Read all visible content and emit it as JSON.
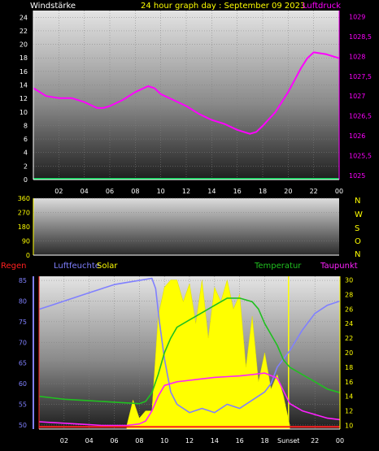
{
  "header": {
    "title": "24 hour graph day : September 09 2023",
    "left_label": "Windstärke",
    "right_label": "Luftdruck"
  },
  "compass": [
    "N",
    "W",
    "S",
    "O",
    "N"
  ],
  "bottom_labels": {
    "regen": "Regen",
    "luftfeuchte": "Luftfeuchte",
    "solar": "Solar",
    "temperatur": "Temperatur",
    "taupunkt": "Taupunkt",
    "sunset": "Sunset"
  },
  "colors": {
    "title": "#ffff00",
    "wind": "#ffffff",
    "pressure": "#ff00ff",
    "rain": "#ff2020",
    "humidity": "#8080ff",
    "solar": "#ffff00",
    "temperature": "#20c020",
    "dewpoint": "#ff20ff",
    "grid": "#808080"
  },
  "chart_data": [
    {
      "type": "line",
      "name": "wind-pressure",
      "x_ticks": [
        "02",
        "04",
        "06",
        "08",
        "10",
        "12",
        "14",
        "16",
        "18",
        "20",
        "22",
        "00"
      ],
      "ylabel": "Windstärke",
      "y2label": "Luftdruck",
      "ylim": [
        0,
        25
      ],
      "y_ticks": [
        0,
        2,
        4,
        6,
        8,
        10,
        12,
        14,
        16,
        18,
        20,
        22,
        24
      ],
      "y2lim": [
        1024.9,
        1029.15
      ],
      "y2_ticks": [
        "1025",
        "1025,5",
        "1026",
        "1026,5",
        "1027",
        "1027,5",
        "1028",
        "1028,5",
        "1029"
      ],
      "series": [
        {
          "name": "Luftdruck",
          "axis": "right",
          "x": [
            0,
            1,
            2,
            3,
            4,
            5,
            5.5,
            6,
            7,
            8,
            9,
            9.5,
            10,
            11,
            12,
            13,
            14,
            15,
            16,
            17,
            17.5,
            18,
            19,
            20,
            21,
            21.5,
            22,
            23,
            24
          ],
          "values": [
            1027.2,
            1027.0,
            1026.95,
            1026.95,
            1026.85,
            1026.7,
            1026.7,
            1026.75,
            1026.9,
            1027.1,
            1027.25,
            1027.2,
            1027.05,
            1026.9,
            1026.75,
            1026.55,
            1026.4,
            1026.3,
            1026.15,
            1026.05,
            1026.1,
            1026.25,
            1026.6,
            1027.1,
            1027.7,
            1027.95,
            1028.1,
            1028.05,
            1027.95
          ]
        },
        {
          "name": "Windstärke",
          "axis": "left",
          "x": [
            0,
            24
          ],
          "values": [
            0,
            0
          ]
        }
      ]
    },
    {
      "type": "line",
      "name": "wind-direction",
      "x_ticks": [
        "02",
        "04",
        "06",
        "08",
        "10",
        "12",
        "14",
        "16",
        "18",
        "20",
        "22",
        "00"
      ],
      "ylim": [
        0,
        360
      ],
      "y_ticks": [
        0,
        90,
        180,
        270,
        360
      ],
      "series": []
    },
    {
      "type": "area",
      "name": "climate",
      "x_ticks": [
        "02",
        "04",
        "06",
        "08",
        "10",
        "12",
        "14",
        "16",
        "18",
        "22",
        "00"
      ],
      "x_tick_hours": [
        2,
        4,
        6,
        8,
        10,
        12,
        14,
        16,
        18,
        22,
        24
      ],
      "ylim": [
        49,
        86
      ],
      "y_ticks": [
        50,
        55,
        60,
        65,
        70,
        75,
        80,
        85
      ],
      "y2lim": [
        9.5,
        30.5
      ],
      "y2_ticks": [
        10,
        12,
        14,
        16,
        18,
        20,
        22,
        24,
        26,
        28,
        30
      ],
      "sunset_hour": 19.9,
      "series": [
        {
          "name": "Luftfeuchte",
          "axis": "left",
          "x": [
            0,
            1,
            2,
            3,
            4,
            5,
            6,
            7,
            8,
            9,
            9.3,
            9.6,
            10,
            10.5,
            11,
            12,
            13,
            14,
            15,
            16,
            17,
            18,
            18.5,
            19,
            20,
            21,
            22,
            23,
            24
          ],
          "values": [
            78,
            79,
            80,
            81,
            82,
            83,
            84,
            84.5,
            85,
            85.5,
            83,
            75,
            66,
            58,
            55,
            53,
            54,
            53,
            55,
            54,
            56,
            58,
            60,
            64,
            68,
            73,
            77,
            79,
            80
          ]
        },
        {
          "name": "Temperatur",
          "axis": "right",
          "x": [
            0,
            1,
            2,
            3,
            4,
            5,
            6,
            7,
            8,
            8.5,
            9,
            9.5,
            10,
            10.5,
            11,
            12,
            13,
            14,
            15,
            16,
            17,
            17.5,
            18,
            19,
            19.5,
            20,
            21,
            22,
            23,
            24
          ],
          "values": [
            14,
            13.8,
            13.6,
            13.5,
            13.4,
            13.3,
            13.2,
            13.1,
            13.0,
            13.3,
            14.5,
            17,
            20,
            22,
            23.5,
            24.5,
            25.5,
            26.5,
            27.5,
            27.5,
            27,
            26,
            24,
            21,
            19,
            18,
            17,
            16,
            15,
            14.5
          ]
        },
        {
          "name": "Taupunkt",
          "axis": "right",
          "x": [
            0,
            1,
            2,
            3,
            4,
            5,
            6,
            7,
            8,
            8.5,
            9,
            9.5,
            10,
            11,
            12,
            13,
            14,
            15,
            16,
            17,
            18,
            19,
            20,
            21,
            22,
            23,
            24
          ],
          "values": [
            10.5,
            10.4,
            10.3,
            10.2,
            10.1,
            10.0,
            10.0,
            10.0,
            10.2,
            10.6,
            12,
            14,
            15.5,
            16.0,
            16.2,
            16.4,
            16.6,
            16.7,
            16.8,
            17.0,
            17.2,
            16.5,
            13,
            12,
            11.5,
            11,
            10.8
          ]
        },
        {
          "name": "Solar",
          "axis": "right",
          "x": [
            7,
            7.5,
            8,
            8.5,
            9,
            9.5,
            10,
            10.5,
            11,
            11.5,
            12,
            12.5,
            13,
            13.5,
            14,
            14.5,
            15,
            15.5,
            16,
            16.5,
            17,
            17.5,
            18,
            18.5,
            19,
            19.5,
            20
          ],
          "values": [
            10,
            13.5,
            11,
            12,
            12,
            25,
            29,
            30,
            30,
            27,
            29.5,
            24,
            30,
            22,
            29,
            27,
            30,
            26,
            28,
            18,
            25,
            16,
            20,
            15,
            17,
            14,
            10
          ]
        },
        {
          "name": "Regen",
          "axis": "right",
          "x": [
            0,
            24
          ],
          "values": [
            9.8,
            9.8
          ]
        }
      ]
    }
  ]
}
